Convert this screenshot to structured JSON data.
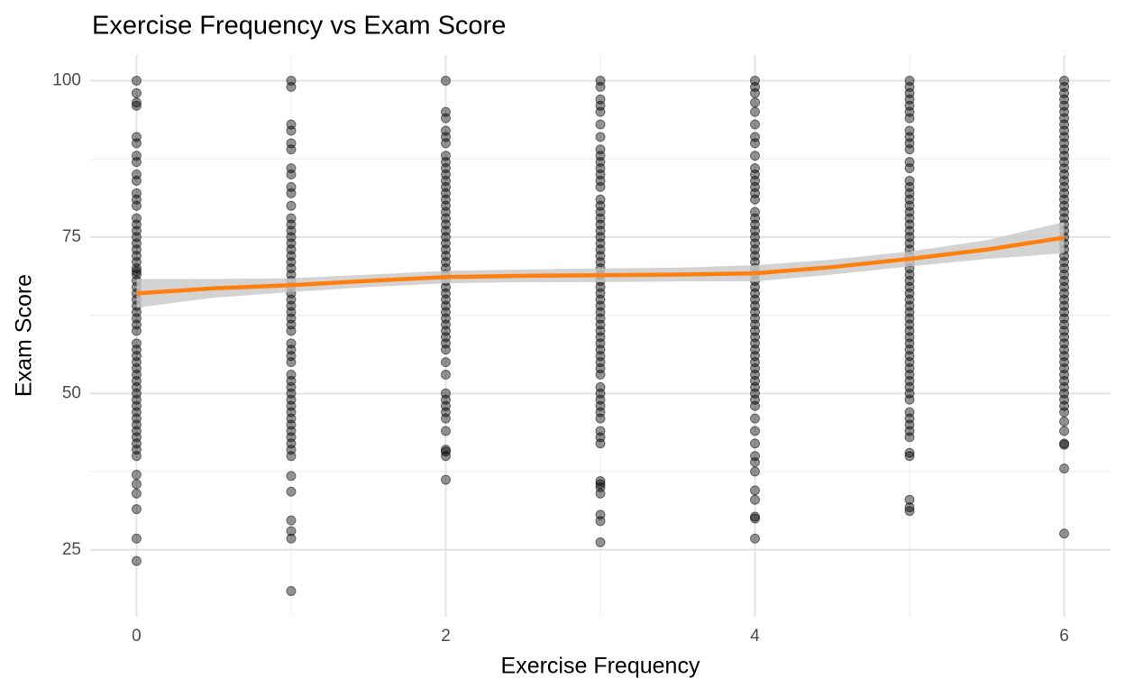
{
  "chart_data": {
    "type": "scatter",
    "title": "Exercise Frequency vs Exam Score",
    "x_label": "Exercise Frequency",
    "y_label": "Exam Score",
    "xlim": [
      -0.3,
      6.3
    ],
    "ylim": [
      14.3,
      104.1
    ],
    "xticks": [
      0,
      2,
      4,
      6
    ],
    "yticks": [
      25,
      50,
      75,
      100
    ],
    "minor_xticks": [
      1,
      3,
      5
    ],
    "minor_yticks": [
      37.5,
      62.5,
      87.5
    ],
    "grid": true,
    "point_color": "#000000",
    "groups": [
      {
        "x": 0,
        "values": [
          100,
          98,
          96.5,
          96,
          91,
          90,
          88,
          87,
          85,
          84,
          82,
          81,
          80,
          78,
          77,
          76,
          75,
          74,
          73,
          72,
          71,
          70,
          69.5,
          69,
          68,
          67,
          66,
          65,
          64,
          63,
          62,
          61,
          60,
          58,
          57,
          56,
          55,
          54,
          53,
          52,
          51,
          50,
          49,
          48,
          47,
          46,
          45,
          44,
          43,
          42,
          41,
          40,
          37,
          35.5,
          34,
          31.5,
          26.8,
          23.2
        ]
      },
      {
        "x": 1,
        "values": [
          100,
          99,
          93,
          92,
          90,
          89,
          86,
          85,
          83,
          82,
          80,
          78,
          77,
          76,
          75,
          74,
          73,
          72,
          71,
          70,
          69,
          68,
          67,
          66,
          65,
          64,
          63,
          62,
          61,
          60,
          58,
          57,
          56,
          55,
          53,
          52,
          51,
          50,
          49,
          48,
          47,
          46,
          45,
          44,
          43,
          42,
          41,
          40,
          36.8,
          34.3,
          29.7,
          28,
          26.8,
          18.4
        ]
      },
      {
        "x": 2,
        "values": [
          100,
          95,
          94,
          92,
          91,
          90,
          88,
          87,
          86,
          85,
          84,
          83,
          82,
          81,
          80,
          79,
          78,
          77,
          76,
          75,
          74,
          73,
          72,
          71,
          70,
          69,
          68,
          67,
          66,
          65,
          64,
          63,
          62,
          61,
          60,
          59,
          58,
          57,
          55,
          53,
          50,
          49,
          48,
          47,
          46,
          44,
          41,
          40.7,
          40,
          36.2
        ]
      },
      {
        "x": 3,
        "values": [
          100,
          99,
          97,
          96,
          95,
          93,
          91,
          89,
          88,
          87,
          86,
          85,
          84,
          83,
          81,
          80,
          79,
          78,
          77,
          76,
          75,
          74,
          73,
          72,
          71,
          70,
          69,
          68,
          67,
          66,
          65,
          64,
          63,
          62,
          61,
          60,
          59,
          58,
          57,
          56,
          55,
          54,
          53,
          51,
          50,
          49,
          48,
          47,
          46,
          44,
          43,
          42,
          36,
          35.5,
          35,
          34,
          30.6,
          29.6,
          26.2
        ]
      },
      {
        "x": 4,
        "values": [
          100,
          99,
          98,
          96.5,
          95,
          93,
          91,
          90,
          88,
          86,
          85,
          84,
          83,
          82,
          81,
          79,
          78,
          77,
          76,
          75,
          74,
          73,
          72,
          71,
          70,
          69,
          68,
          67,
          66,
          65,
          64,
          63,
          62,
          61,
          60,
          59,
          58,
          57,
          56,
          55,
          54,
          53,
          52,
          51,
          50,
          49,
          48,
          46,
          44,
          42,
          40,
          39,
          37.5,
          34.5,
          33,
          30.3,
          30,
          26.8
        ]
      },
      {
        "x": 5,
        "values": [
          100,
          99,
          98,
          97,
          96,
          95,
          94,
          92,
          91,
          90,
          89,
          87,
          86,
          84,
          83,
          82,
          81,
          80,
          79,
          78,
          77,
          76,
          75,
          74,
          73,
          72,
          71,
          70,
          69,
          68,
          67,
          66,
          65,
          64,
          63,
          62,
          61,
          60,
          59,
          58,
          57,
          56,
          55,
          54,
          53,
          52,
          51,
          50,
          49,
          47,
          46,
          45,
          44,
          43,
          40.5,
          40,
          33,
          31.8,
          31.2
        ]
      },
      {
        "x": 6,
        "values": [
          100,
          99,
          98,
          97,
          96,
          95,
          94,
          93,
          92,
          91,
          90,
          89,
          88,
          87,
          86,
          85,
          84,
          83,
          82,
          81,
          80,
          79,
          78,
          77,
          76,
          75,
          74,
          73,
          72,
          71,
          70,
          69,
          68,
          67,
          66,
          65,
          64,
          63,
          62,
          61,
          60,
          59,
          58,
          57,
          56,
          55,
          54,
          53,
          52,
          51,
          50,
          49,
          48,
          47,
          45.5,
          44,
          42,
          41.8,
          38,
          27.6
        ]
      }
    ],
    "smooth": {
      "color": "#ff7f0e",
      "band_color": "#c8c8c8",
      "x": [
        0,
        0.5,
        1,
        1.5,
        2,
        2.5,
        3,
        3.5,
        4,
        4.5,
        5,
        5.5,
        6
      ],
      "values": [
        66.0,
        66.8,
        67.3,
        68.0,
        68.6,
        68.8,
        68.9,
        69.0,
        69.2,
        70.2,
        71.5,
        73.0,
        74.9
      ],
      "lower": [
        63.7,
        65.3,
        66.2,
        67.0,
        67.6,
        67.8,
        67.8,
        67.9,
        67.9,
        69.0,
        70.3,
        71.5,
        72.4
      ],
      "upper": [
        68.3,
        68.3,
        68.4,
        69.0,
        69.6,
        69.8,
        70.0,
        70.1,
        70.5,
        71.4,
        72.7,
        74.5,
        77.4
      ]
    }
  }
}
